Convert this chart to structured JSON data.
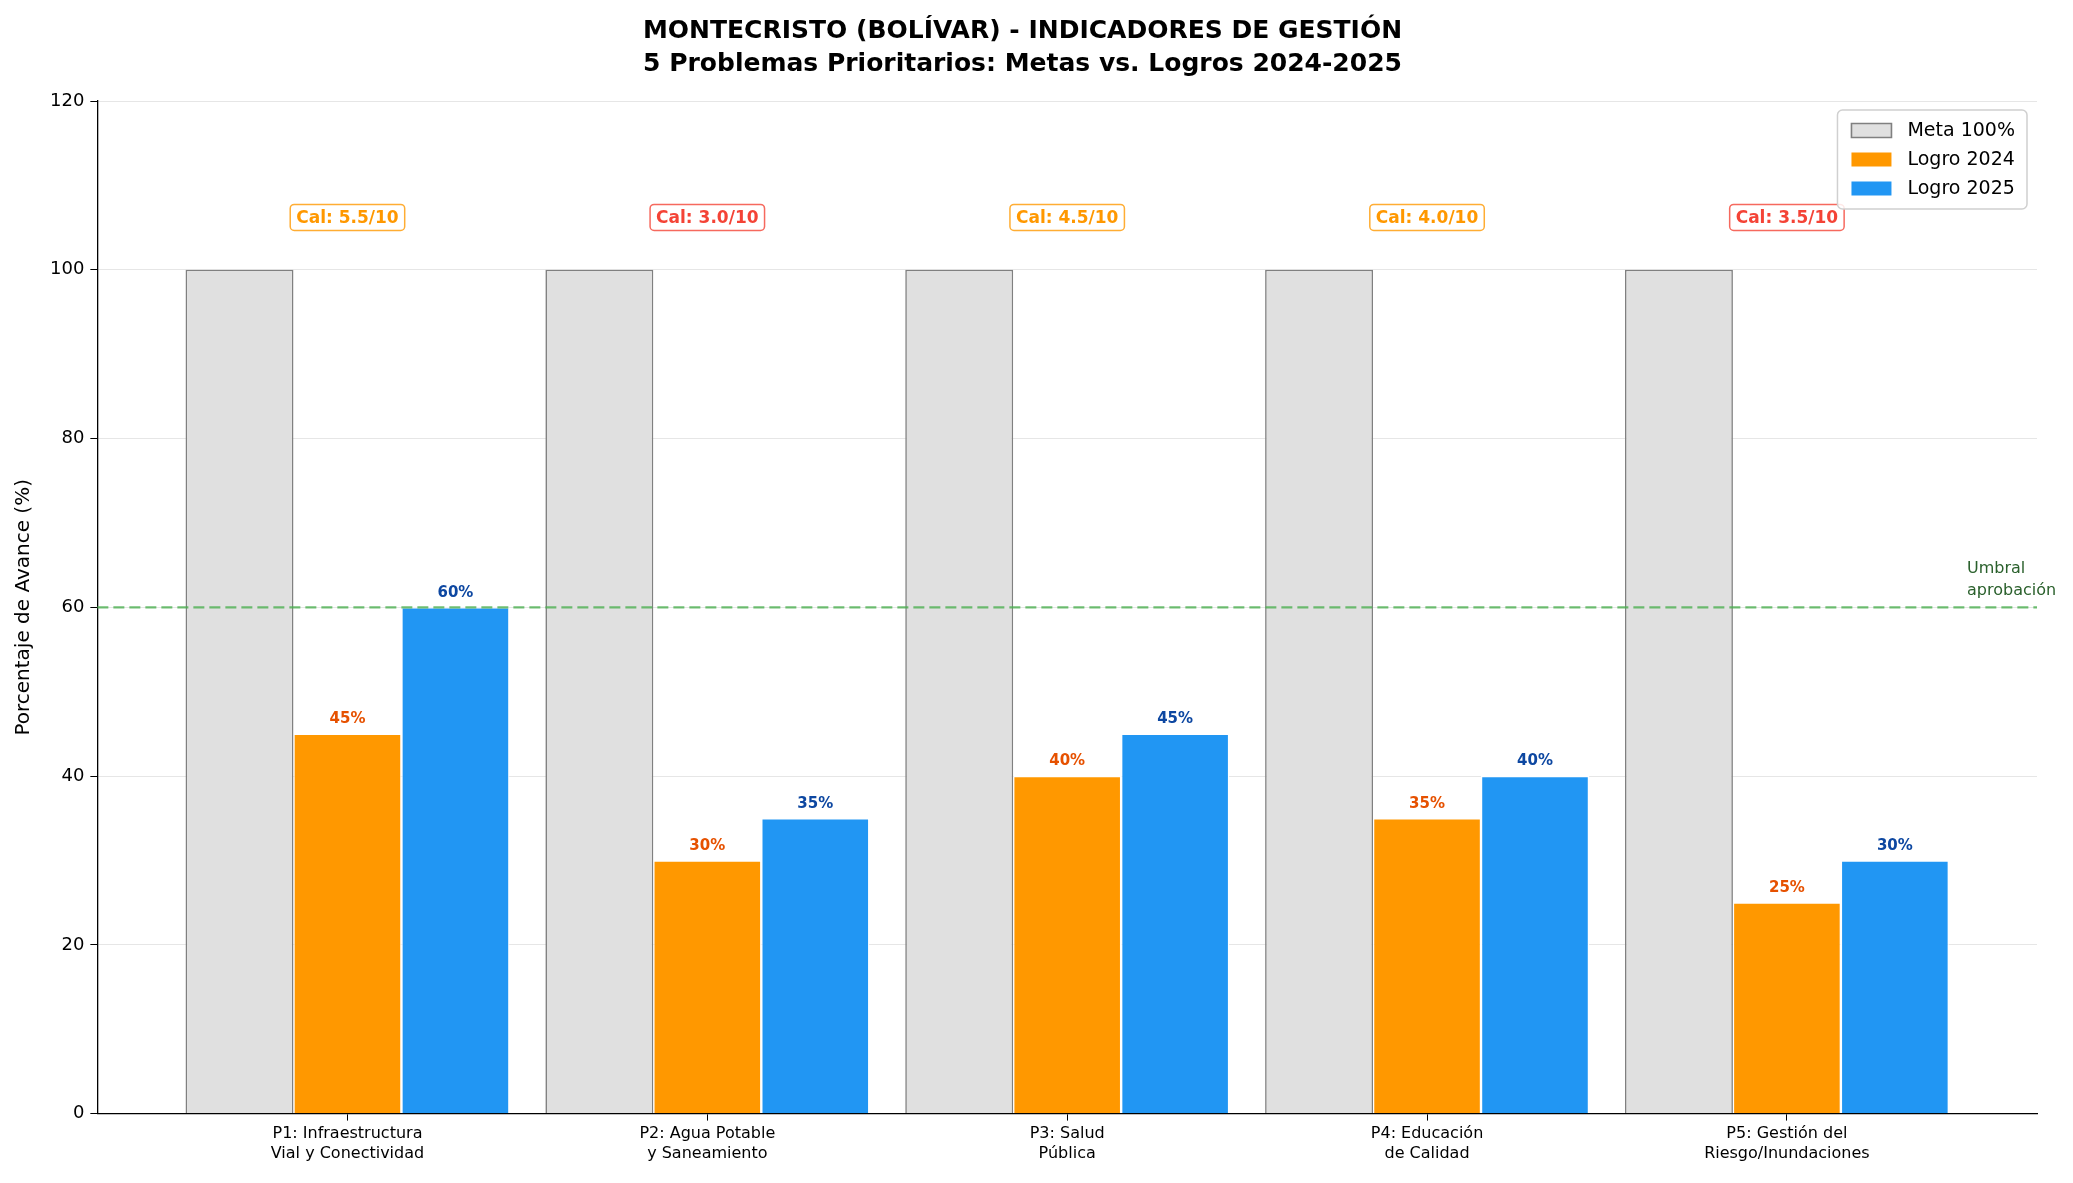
{
  "chart_data": {
    "type": "bar",
    "title": "MONTECRISTO (BOLÍVAR) - INDICADORES DE GESTIÓN",
    "subtitle": "5 Problemas Prioritarios: Metas vs. Logros 2024-2025",
    "ylabel": "Porcentaje de Avance (%)",
    "categories": [
      "P1: Infraestructura\nVial y Conectividad",
      "P2: Agua Potable\ny Saneamiento",
      "P3: Salud\nPública",
      "P4: Educación\nde Calidad",
      "P5: Gestión del\nRiesgo/Inundaciones"
    ],
    "series": [
      {
        "name": "Meta 100%",
        "color": "#e0e0e0",
        "values": [
          100,
          100,
          100,
          100,
          100
        ]
      },
      {
        "name": "Logro 2024",
        "color": "#ff9800",
        "values": [
          45,
          30,
          40,
          35,
          25
        ],
        "value_labels": [
          "45%",
          "30%",
          "40%",
          "35%",
          "25%"
        ]
      },
      {
        "name": "Logro 2025",
        "color": "#2196f3",
        "values": [
          60,
          35,
          45,
          40,
          30
        ],
        "value_labels": [
          "60%",
          "35%",
          "45%",
          "40%",
          "30%"
        ]
      }
    ],
    "ylim": [
      0,
      120
    ],
    "yticks": [
      0,
      20,
      40,
      60,
      80,
      100,
      120
    ],
    "grid": "y",
    "legend": "top right",
    "ref_lines": [
      {
        "axis": "y",
        "value": 60,
        "label": "Umbral\naprobación",
        "color": "#4caf50",
        "line_style": "dashed"
      }
    ],
    "annotations": [
      "Cal: 5.5/10",
      "Cal: 3.0/10",
      "Cal: 4.5/10",
      "Cal: 4.0/10",
      "Cal: 3.5/10"
    ]
  }
}
